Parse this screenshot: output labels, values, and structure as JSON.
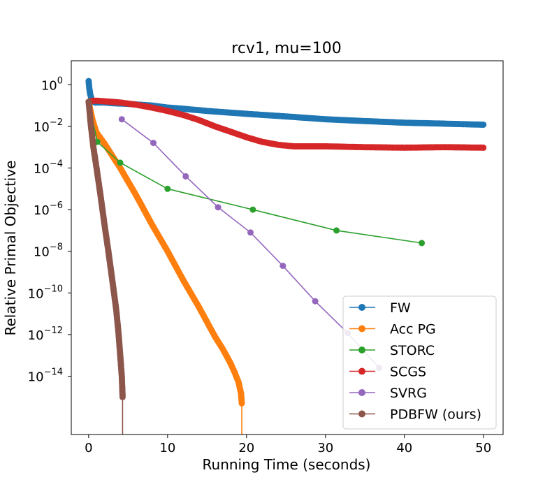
{
  "chart_data": {
    "type": "line",
    "title": "rcv1, mu=100",
    "xlabel": "Running Time (seconds)",
    "ylabel": "Relative Primal Objective",
    "yscale": "log",
    "xlim": [
      -2.2,
      52.5
    ],
    "ylim_log10": [
      -16.8,
      1.15
    ],
    "xticks": [
      0,
      10,
      20,
      30,
      40,
      50
    ],
    "xtick_labels": [
      "0",
      "10",
      "20",
      "30",
      "40",
      "50"
    ],
    "yticks_log10": [
      0,
      -2,
      -4,
      -6,
      -8,
      -10,
      -12,
      -14
    ],
    "ytick_labels": [
      "10",
      "10",
      "10",
      "10",
      "10",
      "10",
      "10",
      "10"
    ],
    "ytick_exponents": [
      "0",
      "−2",
      "−4",
      "−6",
      "−8",
      "−10",
      "−12",
      "−14"
    ],
    "grid": false,
    "legend_position": "lower right",
    "series": [
      {
        "name": "FW",
        "color": "#1f77b4",
        "dense": true,
        "x": [
          0,
          0.1,
          0.2,
          0.35,
          0.5,
          0.8,
          1,
          2,
          3,
          5,
          8,
          10,
          12,
          15,
          20,
          25,
          30,
          35,
          40,
          45,
          50
        ],
        "y": [
          1.5,
          0.6,
          0.35,
          0.22,
          0.16,
          0.14,
          0.14,
          0.14,
          0.13,
          0.12,
          0.1,
          0.08,
          0.07,
          0.055,
          0.04,
          0.03,
          0.022,
          0.018,
          0.015,
          0.0135,
          0.012
        ]
      },
      {
        "name": "Acc PG",
        "color": "#ff7f0e",
        "dense": true,
        "x": [
          0,
          0.5,
          1,
          2,
          4,
          6,
          8,
          10,
          12,
          14,
          16,
          17,
          18,
          18.5,
          19,
          19.3,
          19.4
        ],
        "y": [
          0.15,
          0.02,
          0.005,
          0.0015,
          0.0001,
          5e-06,
          2e-07,
          1e-08,
          4e-10,
          2e-11,
          8e-13,
          2e-13,
          4e-14,
          1.5e-14,
          5e-15,
          1.5e-15,
          5e-16
        ]
      },
      {
        "name": "STORC",
        "color": "#2ca02c",
        "dense": false,
        "x": [
          0,
          1.1,
          4,
          10,
          20.8,
          31.4,
          42.2
        ],
        "y": [
          0.15,
          0.0018,
          0.00018,
          1e-05,
          1e-06,
          1e-07,
          2.5e-08
        ]
      },
      {
        "name": "SCGS",
        "color": "#d62728",
        "dense": true,
        "x": [
          0,
          0.5,
          1,
          2,
          4,
          6,
          8,
          10,
          12,
          14,
          16,
          18,
          20,
          22,
          24,
          26,
          28,
          30,
          35,
          40,
          45,
          50
        ],
        "y": [
          0.15,
          0.17,
          0.17,
          0.16,
          0.14,
          0.11,
          0.08,
          0.055,
          0.035,
          0.02,
          0.01,
          0.0055,
          0.003,
          0.0018,
          0.0013,
          0.0011,
          0.0011,
          0.0011,
          0.001,
          0.00095,
          0.001,
          0.00095
        ]
      },
      {
        "name": "SVRG",
        "color": "#9467bd",
        "dense": false,
        "x": [
          4.2,
          8.2,
          12.3,
          16.4,
          20.5,
          24.6,
          28.7,
          32.8,
          36.8
        ],
        "y": [
          0.022,
          0.0016,
          4e-05,
          1.3e-06,
          8e-08,
          2e-09,
          4e-11,
          1.2e-12,
          2.5e-14
        ]
      },
      {
        "name": "PDBFW (ours)",
        "color": "#8c564b",
        "dense": true,
        "x": [
          0,
          0.3,
          0.6,
          1,
          1.5,
          2,
          2.5,
          3,
          3.5,
          3.8,
          4,
          4.2,
          4.3
        ],
        "y": [
          0.15,
          0.01,
          0.001,
          0.0001,
          5e-06,
          2e-07,
          1e-08,
          4e-10,
          1.5e-11,
          1e-12,
          1e-13,
          1e-14,
          1e-15
        ]
      }
    ]
  }
}
